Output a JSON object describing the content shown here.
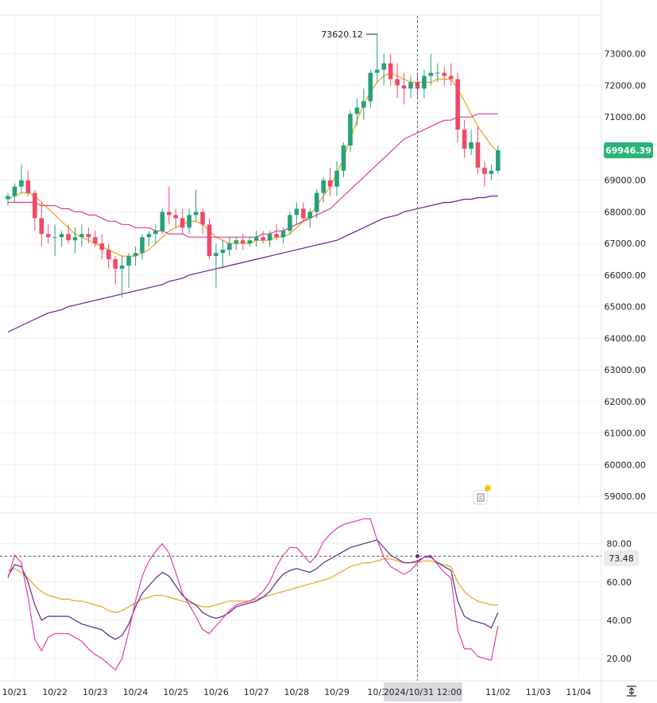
{
  "chart_data": [
    {
      "type": "candlestick",
      "title": "",
      "ylim": [
        58600,
        74200
      ],
      "y_ticks": [
        "73000.00",
        "72000.00",
        "71000.00",
        "70000.00",
        "69000.00",
        "68000.00",
        "67000.00",
        "66000.00",
        "65000.00",
        "64000.00",
        "63000.00",
        "62000.00",
        "61000.00",
        "60000.00",
        "59000.00"
      ],
      "y_tick_values": [
        73000,
        72000,
        71000,
        70000,
        69000,
        68000,
        67000,
        66000,
        65000,
        64000,
        63000,
        62000,
        61000,
        60000,
        59000
      ],
      "x_ticks": [
        "10/21",
        "10/22",
        "10/23",
        "10/24",
        "10/25",
        "10/26",
        "10/27",
        "10/28",
        "10/29",
        "10/3",
        "1",
        "11/02",
        "11/03",
        "11/04"
      ],
      "x_tick_index": [
        1,
        7,
        13,
        19,
        25,
        31,
        37,
        43,
        49,
        55,
        67,
        73,
        79,
        85
      ],
      "crosshair_x_label": "2024/10/31 12:00",
      "crosshair_index": 61,
      "last_price_label": "69946.39",
      "last_price_value": 69946.39,
      "last_price_color": "#2bb37a",
      "high_annotation": "73620.12",
      "high_annotation_value": 73620.12,
      "up_color": "#26a17b",
      "down_color": "#f04a66",
      "grid": true,
      "candles": [
        [
          68400,
          68600,
          68200,
          68500
        ],
        [
          68500,
          68900,
          68300,
          68800
        ],
        [
          68800,
          69500,
          68600,
          69000
        ],
        [
          69000,
          69300,
          68500,
          68600
        ],
        [
          68600,
          68700,
          67400,
          67800
        ],
        [
          67800,
          68300,
          66900,
          67300
        ],
        [
          67300,
          67600,
          67000,
          67200
        ],
        [
          67200,
          67600,
          66600,
          67200
        ],
        [
          67200,
          67400,
          66900,
          67300
        ],
        [
          67300,
          67600,
          67000,
          67100
        ],
        [
          67100,
          67500,
          66700,
          67200
        ],
        [
          67200,
          67600,
          66900,
          67300
        ],
        [
          67300,
          67500,
          67000,
          67200
        ],
        [
          67200,
          67400,
          66900,
          67000
        ],
        [
          67000,
          67300,
          66500,
          66800
        ],
        [
          66800,
          67000,
          66200,
          66500
        ],
        [
          66500,
          66600,
          65700,
          66200
        ],
        [
          66200,
          66600,
          65300,
          66300
        ],
        [
          66300,
          66700,
          65600,
          66600
        ],
        [
          66600,
          66900,
          66300,
          66700
        ],
        [
          66700,
          67300,
          66500,
          67200
        ],
        [
          67200,
          67400,
          66900,
          67300
        ],
        [
          67300,
          67600,
          67000,
          67400
        ],
        [
          67400,
          68100,
          67300,
          68000
        ],
        [
          68000,
          68800,
          67600,
          67900
        ],
        [
          67900,
          68100,
          67500,
          67800
        ],
        [
          67800,
          68100,
          67300,
          67500
        ],
        [
          67500,
          68100,
          67300,
          67900
        ],
        [
          67900,
          68700,
          67700,
          68000
        ],
        [
          68000,
          68100,
          67300,
          67600
        ],
        [
          67600,
          67800,
          66500,
          66600
        ],
        [
          66600,
          67000,
          65600,
          66700
        ],
        [
          66700,
          67100,
          66200,
          66800
        ],
        [
          66800,
          67200,
          66600,
          67000
        ],
        [
          67000,
          67200,
          66800,
          67100
        ],
        [
          67100,
          67300,
          66800,
          67000
        ],
        [
          67000,
          67200,
          66900,
          67100
        ],
        [
          67100,
          67400,
          66900,
          67200
        ],
        [
          67200,
          67400,
          67000,
          67100
        ],
        [
          67100,
          67400,
          66900,
          67300
        ],
        [
          67300,
          67600,
          67100,
          67200
        ],
        [
          67200,
          67500,
          67000,
          67400
        ],
        [
          67400,
          68000,
          67300,
          67900
        ],
        [
          67900,
          68300,
          67600,
          68100
        ],
        [
          68100,
          68300,
          67700,
          67800
        ],
        [
          67800,
          68100,
          67500,
          68000
        ],
        [
          68000,
          68700,
          67800,
          68600
        ],
        [
          68600,
          69100,
          68300,
          69000
        ],
        [
          69000,
          69400,
          68500,
          68800
        ],
        [
          68800,
          69600,
          68500,
          69300
        ],
        [
          69300,
          70200,
          69100,
          70100
        ],
        [
          70100,
          71200,
          69900,
          71100
        ],
        [
          71100,
          71600,
          70700,
          71300
        ],
        [
          71300,
          71900,
          70900,
          71500
        ],
        [
          71500,
          72500,
          71300,
          72400
        ],
        [
          72400,
          73620,
          72100,
          72500
        ],
        [
          72500,
          73000,
          72000,
          72700
        ],
        [
          72700,
          73000,
          72000,
          72200
        ],
        [
          72200,
          72700,
          71600,
          72000
        ],
        [
          72000,
          72400,
          71400,
          71900
        ],
        [
          71900,
          72300,
          71600,
          72100
        ],
        [
          72100,
          72400,
          71600,
          71900
        ],
        [
          71900,
          72500,
          71600,
          72300
        ],
        [
          72300,
          73000,
          72000,
          72400
        ],
        [
          72400,
          72700,
          72100,
          72400
        ],
        [
          72400,
          72600,
          72000,
          72300
        ],
        [
          72300,
          72700,
          72000,
          72200
        ],
        [
          72200,
          72400,
          70200,
          70600
        ],
        [
          70600,
          70900,
          69700,
          70000
        ],
        [
          70000,
          70600,
          69800,
          70200
        ],
        [
          70200,
          70700,
          69200,
          69400
        ],
        [
          69400,
          69600,
          68800,
          69200
        ],
        [
          69200,
          69500,
          69000,
          69300
        ],
        [
          69300,
          70100,
          69200,
          69946.39
        ]
      ],
      "candle_x_index": [
        0,
        1,
        2,
        3,
        4,
        5,
        6,
        7,
        8,
        9,
        10,
        11,
        12,
        13,
        14,
        15,
        16,
        17,
        18,
        19,
        20,
        21,
        22,
        23,
        24,
        25,
        26,
        27,
        28,
        29,
        30,
        31,
        32,
        33,
        34,
        35,
        36,
        37,
        38,
        39,
        40,
        41,
        42,
        43,
        44,
        45,
        46,
        47,
        48,
        49,
        50,
        51,
        52,
        53,
        54,
        55,
        56,
        57,
        58,
        59,
        60,
        61,
        62,
        63,
        64,
        65,
        66,
        67,
        68,
        69,
        70,
        71,
        72,
        73
      ],
      "ma_lines": [
        {
          "color": "#e8a317",
          "values": [
            68400,
            68500,
            68600,
            68600,
            68500,
            68300,
            68100,
            67900,
            67700,
            67500,
            67300,
            67200,
            67100,
            67000,
            66900,
            66800,
            66700,
            66600,
            66600,
            66600,
            66700,
            66800,
            67000,
            67200,
            67400,
            67500,
            67600,
            67700,
            67700,
            67600,
            67400,
            67200,
            67100,
            67000,
            67000,
            67000,
            67000,
            67100,
            67100,
            67100,
            67200,
            67200,
            67300,
            67500,
            67700,
            67900,
            68200,
            68500,
            68800,
            69200,
            69700,
            70300,
            70900,
            71400,
            71800,
            72100,
            72300,
            72400,
            72300,
            72200,
            72100,
            72100,
            72100,
            72100,
            72200,
            72200,
            72200,
            71900,
            71500,
            71100,
            70700,
            70400,
            70100,
            69900
          ]
        },
        {
          "color": "#e0399a",
          "values": [
            68300,
            68300,
            68300,
            68300,
            68300,
            68200,
            68200,
            68200,
            68100,
            68100,
            68000,
            68000,
            67900,
            67900,
            67800,
            67700,
            67700,
            67600,
            67600,
            67500,
            67500,
            67500,
            67400,
            67400,
            67300,
            67300,
            67300,
            67200,
            67200,
            67200,
            67200,
            67200,
            67200,
            67200,
            67200,
            67200,
            67200,
            67200,
            67300,
            67300,
            67400,
            67400,
            67500,
            67600,
            67700,
            67800,
            67900,
            68000,
            68100,
            68300,
            68500,
            68700,
            68900,
            69100,
            69300,
            69500,
            69700,
            69900,
            70100,
            70300,
            70400,
            70500,
            70600,
            70700,
            70800,
            70900,
            70900,
            71000,
            71000,
            71000,
            71100,
            71100,
            71100,
            71100
          ]
        },
        {
          "color": "#6a1b9a",
          "values": [
            64200,
            64300,
            64400,
            64500,
            64600,
            64700,
            64800,
            64850,
            64900,
            65000,
            65050,
            65100,
            65150,
            65200,
            65250,
            65300,
            65350,
            65400,
            65450,
            65500,
            65550,
            65600,
            65650,
            65700,
            65800,
            65850,
            65900,
            66000,
            66050,
            66100,
            66150,
            66200,
            66250,
            66300,
            66350,
            66400,
            66450,
            66500,
            66550,
            66600,
            66650,
            66700,
            66750,
            66800,
            66850,
            66900,
            66950,
            67000,
            67050,
            67100,
            67200,
            67300,
            67400,
            67500,
            67600,
            67700,
            67800,
            67850,
            67900,
            68000,
            68050,
            68100,
            68150,
            68200,
            68250,
            68300,
            68300,
            68350,
            68400,
            68400,
            68450,
            68450,
            68500,
            68500
          ]
        }
      ]
    },
    {
      "type": "line",
      "title": "",
      "ylim": [
        10,
        94
      ],
      "y_ticks": [
        "80.00",
        "60.00",
        "40.00",
        "20.00"
      ],
      "y_tick_values": [
        80,
        60,
        40,
        20
      ],
      "crosshair_y_label": "73.48",
      "crosshair_y_value": 73.48,
      "series": [
        {
          "color": "#e8a317",
          "values": [
            66,
            67,
            65,
            62,
            58,
            55,
            53,
            52,
            51,
            51,
            50,
            50,
            49,
            48,
            47,
            45,
            44,
            45,
            47,
            49,
            51,
            52,
            53,
            53,
            52,
            51,
            50,
            49,
            48,
            47,
            47,
            48,
            49,
            50,
            50,
            50,
            50,
            51,
            52,
            53,
            54,
            55,
            56,
            57,
            58,
            59,
            60,
            61,
            62,
            64,
            66,
            68,
            69,
            70,
            70,
            71,
            72,
            72,
            71,
            70,
            70,
            70,
            71,
            71,
            70,
            69,
            68,
            60,
            55,
            52,
            50,
            49,
            48,
            48
          ]
        },
        {
          "color": "#5b2a86",
          "values": [
            63,
            69,
            68,
            60,
            48,
            40,
            42,
            42,
            42,
            42,
            40,
            38,
            37,
            36,
            35,
            32,
            30,
            32,
            38,
            47,
            54,
            58,
            62,
            65,
            63,
            58,
            53,
            50,
            48,
            44,
            42,
            41,
            42,
            44,
            47,
            48,
            49,
            50,
            52,
            55,
            60,
            64,
            66,
            67,
            66,
            65,
            67,
            70,
            72,
            74,
            76,
            78,
            79,
            80,
            81,
            82,
            78,
            74,
            72,
            70,
            70,
            71,
            73,
            73,
            70,
            68,
            66,
            50,
            42,
            40,
            39,
            38,
            36,
            44
          ]
        },
        {
          "color": "#e33da6",
          "values": [
            62,
            74,
            70,
            52,
            30,
            24,
            31,
            33,
            33,
            33,
            31,
            29,
            25,
            22,
            20,
            17,
            14,
            20,
            34,
            50,
            63,
            71,
            76,
            80,
            75,
            65,
            54,
            48,
            42,
            35,
            33,
            37,
            41,
            45,
            48,
            49,
            50,
            52,
            55,
            60,
            68,
            74,
            78,
            78,
            74,
            70,
            74,
            81,
            85,
            88,
            90,
            91,
            92,
            93,
            93,
            82,
            73,
            68,
            66,
            64,
            66,
            70,
            73,
            74,
            69,
            65,
            62,
            35,
            25,
            25,
            21,
            20,
            19,
            37
          ]
        }
      ]
    }
  ]
}
